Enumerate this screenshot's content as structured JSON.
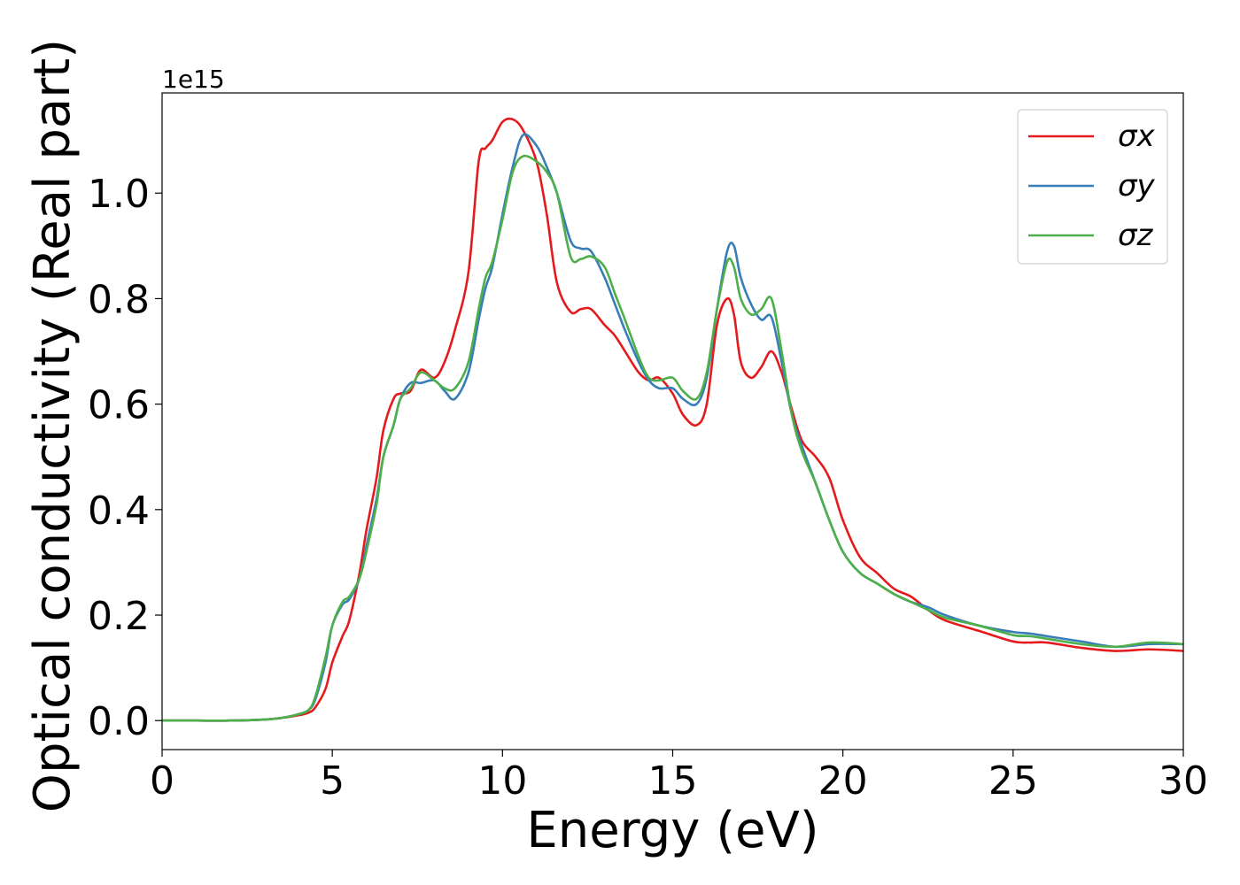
{
  "chart_data": {
    "type": "line",
    "title": "",
    "xlabel": "Energy (eV)",
    "ylabel": "Optical conductivity (Real part)",
    "y_offset_label": "1e15",
    "xlim": [
      0,
      30
    ],
    "ylim": [
      -0.055,
      1.19
    ],
    "grid": false,
    "legend_position": "top-right",
    "x_ticks": [
      0,
      5,
      10,
      15,
      20,
      25,
      30
    ],
    "x_tick_labels": [
      "0",
      "5",
      "10",
      "15",
      "20",
      "25",
      "30"
    ],
    "y_ticks": [
      0.0,
      0.2,
      0.4,
      0.6,
      0.8,
      1.0
    ],
    "y_tick_labels": [
      "0.0",
      "0.2",
      "0.4",
      "0.6",
      "0.8",
      "1.0"
    ],
    "x": [
      0,
      1,
      2,
      3,
      3.5,
      4,
      4.3,
      4.5,
      4.8,
      5,
      5.3,
      5.5,
      5.8,
      6,
      6.3,
      6.5,
      6.8,
      7,
      7.3,
      7.6,
      8,
      8.3,
      8.6,
      9,
      9.3,
      9.5,
      9.7,
      10,
      10.3,
      10.6,
      11,
      11.3,
      11.6,
      12,
      12.3,
      12.6,
      13,
      13.3,
      13.6,
      14,
      14.3,
      14.6,
      15,
      15.3,
      15.7,
      16,
      16.3,
      16.6,
      16.8,
      17,
      17.3,
      17.6,
      17.9,
      18.2,
      18.5,
      18.8,
      19.2,
      19.6,
      20,
      20.5,
      21,
      21.5,
      22,
      22.5,
      23,
      24,
      25,
      25.5,
      26,
      27,
      28,
      29,
      30
    ],
    "series": [
      {
        "name": "σx",
        "color": "#e41a1c",
        "values": [
          0.0,
          0.0,
          0.0,
          0.002,
          0.005,
          0.01,
          0.015,
          0.025,
          0.06,
          0.11,
          0.16,
          0.19,
          0.28,
          0.36,
          0.46,
          0.55,
          0.61,
          0.62,
          0.625,
          0.665,
          0.65,
          0.68,
          0.74,
          0.85,
          1.06,
          1.085,
          1.1,
          1.135,
          1.14,
          1.12,
          1.06,
          0.96,
          0.83,
          0.775,
          0.78,
          0.78,
          0.75,
          0.73,
          0.7,
          0.66,
          0.645,
          0.65,
          0.62,
          0.58,
          0.56,
          0.6,
          0.75,
          0.8,
          0.77,
          0.68,
          0.65,
          0.67,
          0.7,
          0.66,
          0.59,
          0.53,
          0.5,
          0.46,
          0.38,
          0.31,
          0.28,
          0.25,
          0.235,
          0.21,
          0.19,
          0.17,
          0.15,
          0.148,
          0.148,
          0.138,
          0.132,
          0.135,
          0.132
        ]
      },
      {
        "name": "σy",
        "color": "#377eb8",
        "values": [
          0.0,
          0.0,
          0.0,
          0.002,
          0.005,
          0.012,
          0.02,
          0.04,
          0.11,
          0.18,
          0.22,
          0.23,
          0.27,
          0.33,
          0.42,
          0.5,
          0.56,
          0.61,
          0.64,
          0.64,
          0.645,
          0.625,
          0.61,
          0.66,
          0.76,
          0.82,
          0.86,
          0.96,
          1.05,
          1.11,
          1.09,
          1.05,
          1.0,
          0.91,
          0.895,
          0.89,
          0.84,
          0.79,
          0.74,
          0.68,
          0.645,
          0.63,
          0.63,
          0.61,
          0.6,
          0.65,
          0.78,
          0.89,
          0.9,
          0.84,
          0.79,
          0.76,
          0.765,
          0.68,
          0.58,
          0.52,
          0.45,
          0.38,
          0.32,
          0.28,
          0.26,
          0.24,
          0.225,
          0.215,
          0.2,
          0.18,
          0.168,
          0.165,
          0.16,
          0.15,
          0.14,
          0.145,
          0.145
        ]
      },
      {
        "name": "σz",
        "color": "#4daf4a",
        "values": [
          0.0,
          0.0,
          0.0,
          0.002,
          0.005,
          0.012,
          0.02,
          0.045,
          0.12,
          0.18,
          0.225,
          0.235,
          0.27,
          0.32,
          0.41,
          0.5,
          0.56,
          0.61,
          0.63,
          0.66,
          0.645,
          0.63,
          0.63,
          0.68,
          0.78,
          0.84,
          0.87,
          0.95,
          1.04,
          1.07,
          1.06,
          1.04,
          1.0,
          0.88,
          0.875,
          0.88,
          0.86,
          0.81,
          0.76,
          0.69,
          0.65,
          0.645,
          0.65,
          0.625,
          0.61,
          0.66,
          0.78,
          0.87,
          0.86,
          0.8,
          0.77,
          0.78,
          0.8,
          0.7,
          0.58,
          0.51,
          0.45,
          0.38,
          0.32,
          0.28,
          0.26,
          0.24,
          0.225,
          0.21,
          0.195,
          0.18,
          0.162,
          0.16,
          0.155,
          0.145,
          0.14,
          0.148,
          0.145
        ]
      }
    ]
  }
}
